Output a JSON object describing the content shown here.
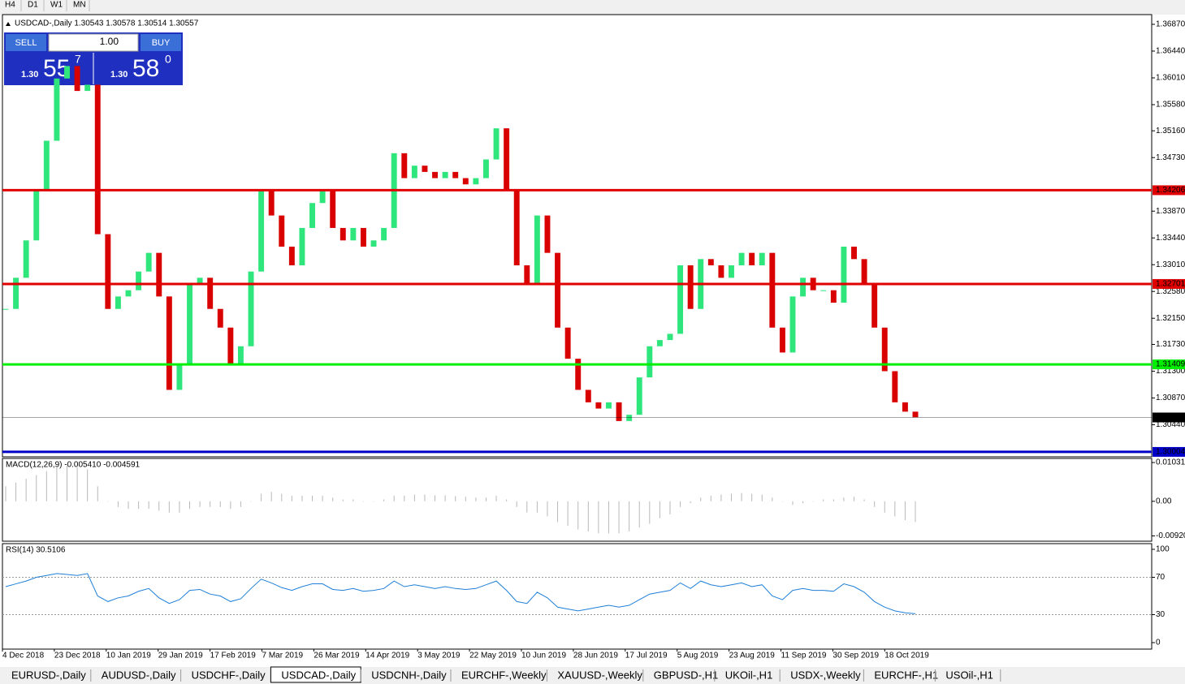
{
  "toolbar": [
    "H4",
    "D1",
    "W1",
    "MN"
  ],
  "symbol_header": "USDCAD-,Daily  1.30543 1.30578 1.30514 1.30557",
  "trade_panel": {
    "sell": "SELL",
    "lot": "1.00",
    "buy": "BUY",
    "sell_price": {
      "prefix": "1.30",
      "big": "55",
      "small": "7"
    },
    "buy_price": {
      "prefix": "1.30",
      "big": "58",
      "small": "0"
    }
  },
  "chart_data": [
    {
      "type": "candlestick",
      "up_color": "#2ee67c",
      "down_color": "#d90000",
      "values": [
        1.323,
        1.328,
        1.334,
        1.342,
        1.35,
        1.36,
        1.362,
        1.358,
        1.359,
        1.335,
        1.323,
        1.325,
        1.326,
        1.329,
        1.332,
        1.325,
        1.31,
        1.314,
        1.327,
        1.328,
        1.323,
        1.32,
        1.314,
        1.317,
        1.329,
        1.342,
        1.338,
        1.333,
        1.33,
        1.336,
        1.34,
        1.342,
        1.336,
        1.334,
        1.336,
        1.333,
        1.334,
        1.336,
        1.348,
        1.344,
        1.346,
        1.345,
        1.344,
        1.345,
        1.344,
        1.343,
        1.344,
        1.347,
        1.352,
        1.342,
        1.33,
        1.327,
        1.338,
        1.332,
        1.32,
        1.315,
        1.31,
        1.308,
        1.307,
        1.308,
        1.305,
        1.306,
        1.312,
        1.317,
        1.318,
        1.319,
        1.33,
        1.323,
        1.331,
        1.33,
        1.328,
        1.33,
        1.332,
        1.33,
        1.332,
        1.32,
        1.316,
        1.325,
        1.328,
        1.326,
        1.326,
        1.324,
        1.333,
        1.331,
        1.327,
        1.32,
        1.313,
        1.308,
        1.3065,
        1.3056
      ],
      "ylim": [
        1.29925,
        1.37026
      ],
      "yticks": [
        {
          "value": 1.3687,
          "label": "1.36870"
        },
        {
          "value": 1.3644,
          "label": "1.36440"
        },
        {
          "value": 1.3601,
          "label": "1.36010"
        },
        {
          "value": 1.3558,
          "label": "1.35580"
        },
        {
          "value": 1.3516,
          "label": "1.35160"
        },
        {
          "value": 1.3473,
          "label": "1.34730"
        },
        {
          "value": 1.3387,
          "label": "1.33870"
        },
        {
          "value": 1.3344,
          "label": "1.33440"
        },
        {
          "value": 1.3301,
          "label": "1.33010"
        },
        {
          "value": 1.3258,
          "label": "1.32580"
        },
        {
          "value": 1.3215,
          "label": "1.32150"
        },
        {
          "value": 1.3173,
          "label": "1.31730"
        },
        {
          "value": 1.313,
          "label": "1.31300"
        },
        {
          "value": 1.3087,
          "label": "1.30870"
        },
        {
          "value": 1.3044,
          "label": "1.30440"
        }
      ],
      "levels": [
        {
          "value": 1.34206,
          "color": "#e00000"
        },
        {
          "value": 1.32701,
          "color": "#e00000"
        },
        {
          "value": 1.31409,
          "color": "#00ee00"
        },
        {
          "value": 1.30004,
          "color": "#0000c8"
        }
      ],
      "current_price": {
        "value": 1.30557,
        "color": "#000000"
      },
      "date_labels": [
        "4 Dec 2018",
        "23 Dec 2018",
        "10 Jan 2019",
        "29 Jan 2019",
        "17 Feb 2019",
        "7 Mar 2019",
        "26 Mar 2019",
        "14 Apr 2019",
        "3 May 2019",
        "22 May 2019",
        "10 Jun 2019",
        "28 Jun 2019",
        "17 Jul 2019",
        "5 Aug 2019",
        "23 Aug 2019",
        "11 Sep 2019",
        "30 Sep 2019",
        "18 Oct 2019"
      ]
    },
    {
      "type": "bar",
      "title": "MACD(12,26,9) -0.005410 -0.004591",
      "color": "#b8b8b8",
      "values": [
        0.004,
        0.005,
        0.006,
        0.007,
        0.008,
        0.009,
        0.0095,
        0.009,
        0.0085,
        0.004,
        0.0,
        -0.0015,
        -0.002,
        -0.002,
        -0.002,
        -0.0025,
        -0.003,
        -0.003,
        -0.002,
        -0.0015,
        -0.0015,
        -0.0015,
        -0.002,
        -0.0015,
        0.0,
        0.002,
        0.0025,
        0.002,
        0.0015,
        0.0015,
        0.0015,
        0.0015,
        0.001,
        0.0005,
        0.0005,
        0.0,
        0.0,
        0.0005,
        0.0015,
        0.0015,
        0.0018,
        0.0018,
        0.0016,
        0.0016,
        0.0014,
        0.0012,
        0.001,
        0.001,
        0.0015,
        0.0005,
        -0.0015,
        -0.003,
        -0.003,
        -0.004,
        -0.0055,
        -0.0065,
        -0.0075,
        -0.008,
        -0.0085,
        -0.0085,
        -0.0085,
        -0.008,
        -0.007,
        -0.006,
        -0.0045,
        -0.0035,
        -0.0015,
        -0.0005,
        0.001,
        0.0015,
        0.0018,
        0.002,
        0.0022,
        0.002,
        0.0018,
        0.001,
        0.0,
        -0.001,
        -0.0005,
        0.0,
        0.0005,
        0.0005,
        0.001,
        0.0012,
        0.0005,
        -0.0015,
        -0.003,
        -0.004,
        -0.005,
        -0.0055
      ],
      "ylim": [
        -0.0106,
        0.0114
      ],
      "yticks": [
        0.010311,
        {
          "value": 0,
          "label": "0.00"
        },
        {
          "value": -0.0092,
          "label": "-0.00920"
        }
      ]
    },
    {
      "type": "line",
      "title": "RSI(14) 30.5106",
      "color": "#1e7fd8",
      "values": [
        60,
        63,
        66,
        70,
        72,
        74,
        73,
        72,
        74,
        50,
        44,
        48,
        50,
        55,
        58,
        48,
        42,
        46,
        56,
        57,
        52,
        50,
        44,
        47,
        58,
        68,
        64,
        59,
        56,
        60,
        63,
        63,
        57,
        56,
        58,
        55,
        56,
        58,
        66,
        60,
        62,
        60,
        58,
        60,
        58,
        57,
        58,
        62,
        66,
        56,
        44,
        42,
        54,
        48,
        38,
        36,
        34,
        36,
        38,
        40,
        38,
        40,
        46,
        52,
        54,
        56,
        64,
        58,
        66,
        62,
        60,
        62,
        64,
        60,
        62,
        50,
        46,
        56,
        58,
        56,
        56,
        55,
        63,
        60,
        54,
        44,
        38,
        34,
        32,
        31
      ],
      "ylim": [
        -6.96,
        106.1
      ],
      "yticks": [
        100,
        70,
        30,
        0
      ],
      "grid_levels": [
        70,
        30
      ]
    }
  ],
  "tabs": [
    {
      "label": "EURUSD-,Daily"
    },
    {
      "label": "AUDUSD-,Daily"
    },
    {
      "label": "USDCHF-,Daily"
    },
    {
      "label": "USDCAD-,Daily",
      "active": true
    },
    {
      "label": "USDCNH-,Daily"
    },
    {
      "label": "EURCHF-,Weekly"
    },
    {
      "label": "XAUUSD-,Weekly"
    },
    {
      "label": "GBPUSD-,H1"
    },
    {
      "label": "UKOil-,H1"
    },
    {
      "label": "USDX-,Weekly"
    },
    {
      "label": "EURCHF-,H1"
    },
    {
      "label": "USOil-,H1"
    }
  ]
}
